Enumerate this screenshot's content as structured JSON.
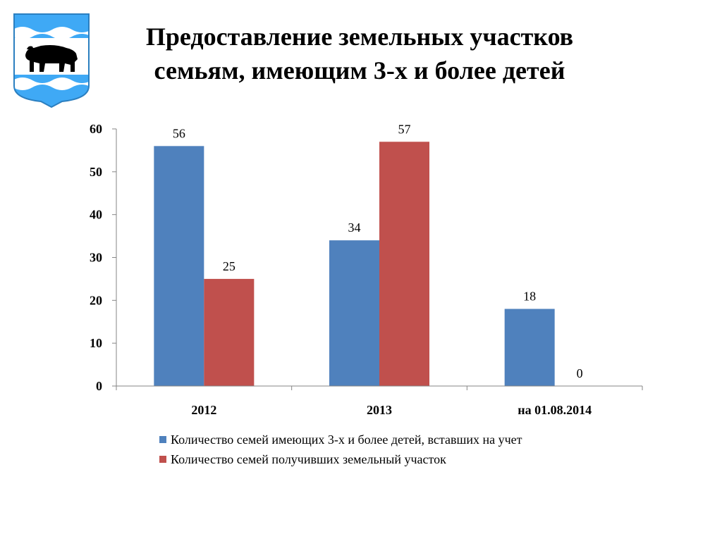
{
  "title": {
    "line1": "Предоставление земельных участков",
    "line2": "семьям, имеющим 3-х  и более детей"
  },
  "emblem": {
    "name": "bear-coat-of-arms",
    "colors": {
      "sky": "#3fa9f5",
      "white": "#ffffff",
      "bear": "#000000"
    }
  },
  "chart_data": {
    "type": "bar",
    "categories": [
      "2012",
      "2013",
      "на 01.08.2014"
    ],
    "series": [
      {
        "name": "Количество семей имеющих 3-х и более детей, вставших на учет",
        "values": [
          56,
          34,
          18
        ],
        "color": "#4f81bd"
      },
      {
        "name": "Количество семей получивших земельный участок",
        "values": [
          25,
          57,
          0
        ],
        "color": "#c0504d"
      }
    ],
    "ylim": [
      0,
      60
    ],
    "yticks": [
      0,
      10,
      20,
      30,
      40,
      50,
      60
    ],
    "grid": false,
    "legend": "bottom",
    "data_labels": true
  }
}
